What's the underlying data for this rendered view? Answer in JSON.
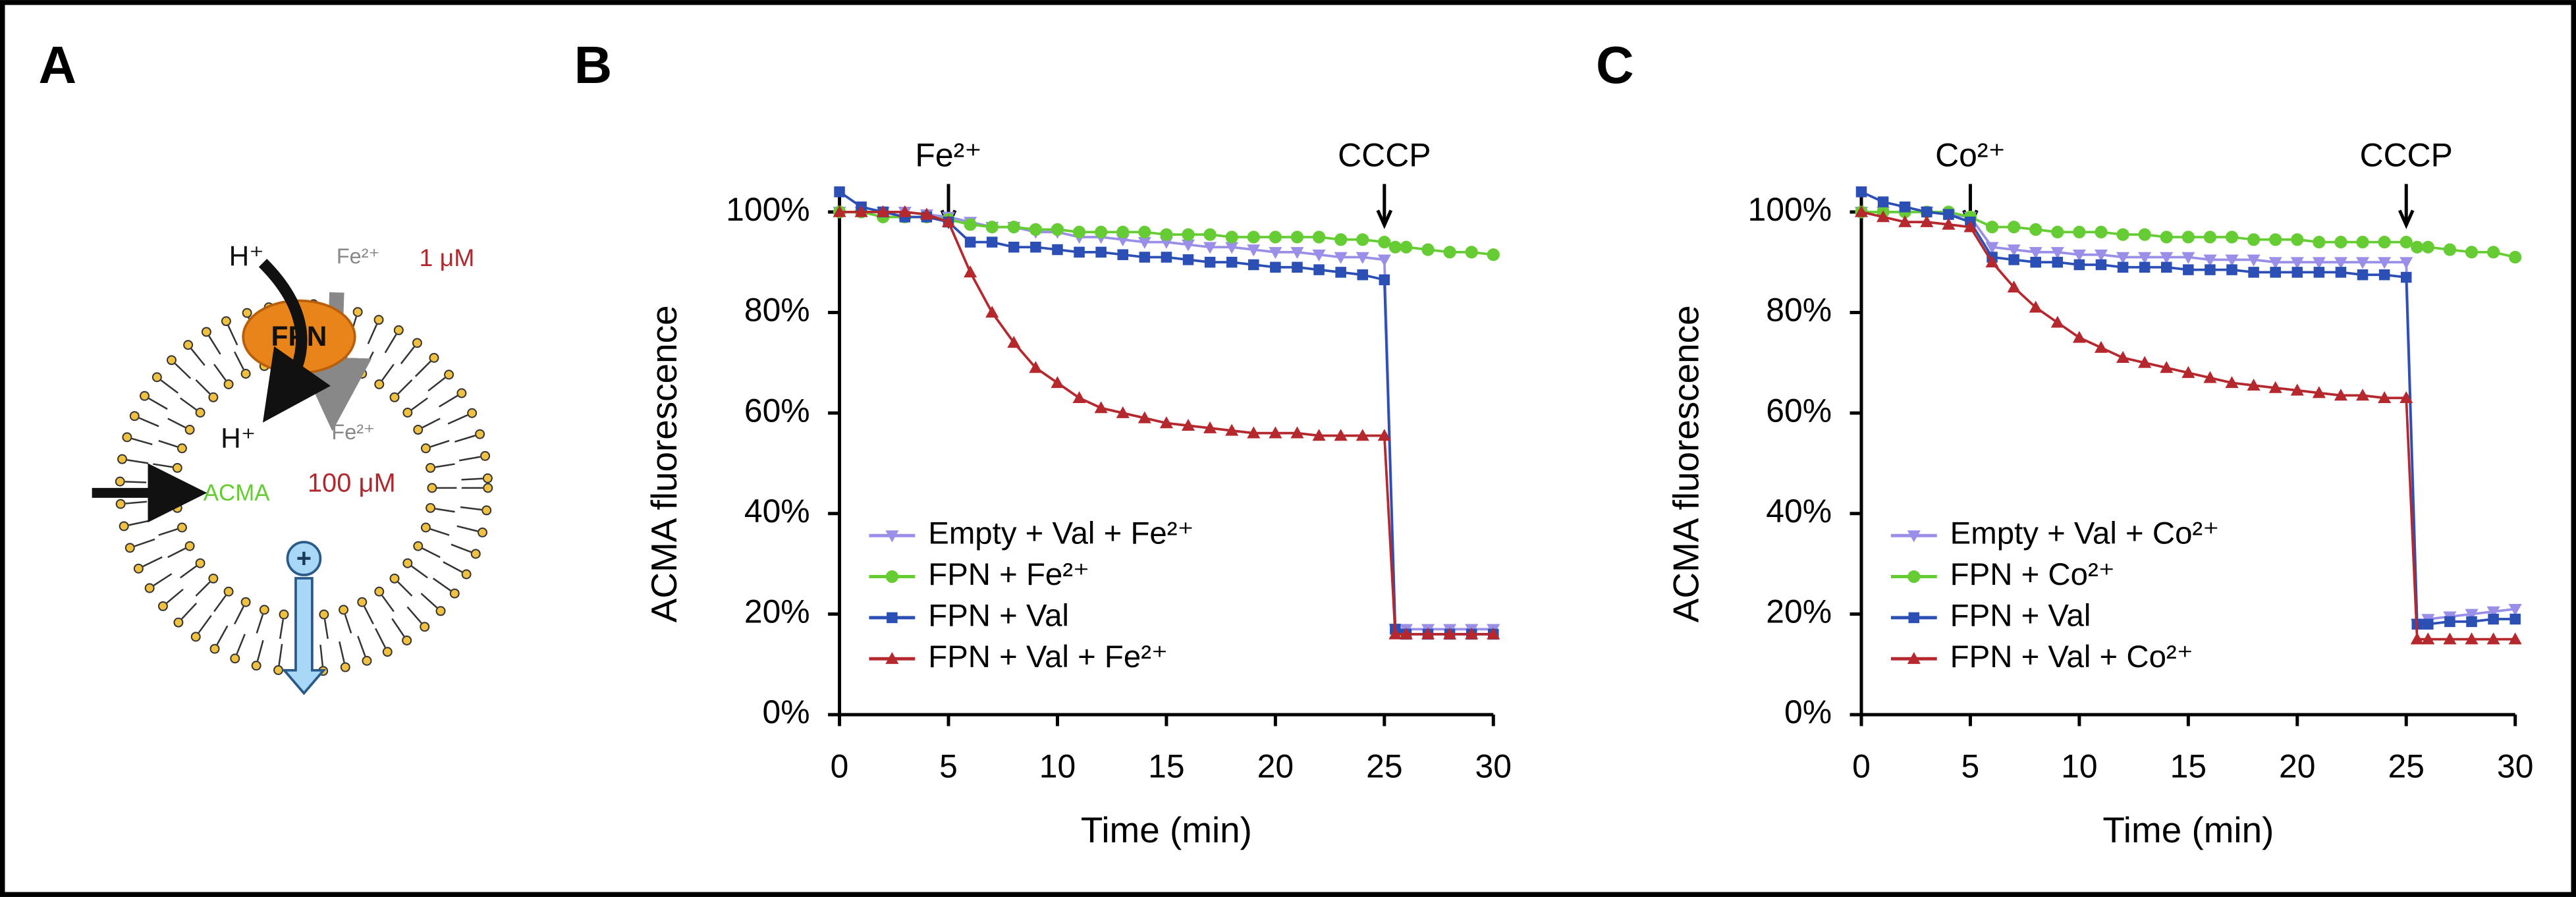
{
  "diagram": {
    "panel": "A",
    "h_out": "H⁺",
    "fe_out": "Fe²⁺",
    "conc_out": "1 μM",
    "protein": "FPN",
    "h_in": "H⁺",
    "fe_in": "Fe²⁺",
    "dye": "ACMA",
    "conc_in": "100 μM",
    "charge": "+"
  },
  "chart_data": [
    {
      "type": "line",
      "panel": "B",
      "xlabel": "Time (min)",
      "ylabel": "ACMA fluorescence",
      "annotations": [
        {
          "text": "Fe²⁺",
          "x": 5
        },
        {
          "text": "CCCP",
          "x": 25
        }
      ],
      "x": [
        0,
        1,
        2,
        3,
        4,
        5,
        6,
        7,
        8,
        9,
        10,
        11,
        12,
        13,
        14,
        15,
        16,
        17,
        18,
        19,
        20,
        21,
        22,
        23,
        24,
        25,
        25.5,
        26,
        27,
        28,
        29,
        30
      ],
      "xlim": [
        0,
        30
      ],
      "xticks": [
        0,
        5,
        10,
        15,
        20,
        25,
        30
      ],
      "ylim": [
        0,
        105
      ],
      "yticks": [
        {
          "value": 0,
          "label": "0%"
        },
        {
          "value": 20,
          "label": "20%"
        },
        {
          "value": 40,
          "label": "40%"
        },
        {
          "value": 60,
          "label": "60%"
        },
        {
          "value": 80,
          "label": "80%"
        },
        {
          "value": 100,
          "label": "100%"
        }
      ],
      "legend": "lower left",
      "series": [
        {
          "name": "Empty + Val + Fe²⁺",
          "color": "#9a8fe8",
          "marker": "triangle-down",
          "values": [
            100,
            100,
            100,
            100,
            99.5,
            99,
            98,
            97,
            97,
            96,
            96,
            95,
            95,
            94.5,
            94,
            94,
            93.5,
            93,
            93,
            92.5,
            92,
            92,
            91.5,
            91,
            91,
            90.5,
            17,
            17,
            17,
            17,
            17,
            17
          ]
        },
        {
          "name": "FPN + Fe²⁺",
          "color": "#66cc33",
          "marker": "circle",
          "values": [
            100,
            100,
            99,
            99,
            99,
            98.5,
            97.5,
            97,
            97,
            96.5,
            96.5,
            96,
            96,
            96,
            96,
            95.5,
            95.5,
            95.5,
            95,
            95,
            95,
            95,
            95,
            94.5,
            94.5,
            94,
            93,
            93,
            92.5,
            92,
            92,
            91.5
          ]
        },
        {
          "name": "FPN + Val",
          "color": "#2b4fb5",
          "marker": "square",
          "values": [
            104,
            101,
            100,
            99,
            99,
            98,
            94,
            94,
            93,
            93,
            92.5,
            92,
            92,
            91.5,
            91,
            91,
            90.5,
            90,
            90,
            89.5,
            89,
            89,
            88.5,
            88,
            87.5,
            86.5,
            17,
            16,
            16,
            16,
            16,
            16
          ]
        },
        {
          "name": "FPN + Val + Fe²⁺",
          "color": "#b5282e",
          "marker": "triangle-up",
          "values": [
            100,
            100,
            100,
            100,
            99.5,
            98,
            88,
            80,
            74,
            69,
            66,
            63,
            61,
            60,
            59,
            58,
            57.5,
            57,
            56.5,
            56,
            56,
            56,
            55.5,
            55.5,
            55.5,
            55.5,
            16,
            16,
            16,
            16,
            16,
            16
          ]
        }
      ]
    },
    {
      "type": "line",
      "panel": "C",
      "xlabel": "Time (min)",
      "ylabel": "ACMA fluorescence",
      "annotations": [
        {
          "text": "Co²⁺",
          "x": 5
        },
        {
          "text": "CCCP",
          "x": 25
        }
      ],
      "x": [
        0,
        1,
        2,
        3,
        4,
        5,
        6,
        7,
        8,
        9,
        10,
        11,
        12,
        13,
        14,
        15,
        16,
        17,
        18,
        19,
        20,
        21,
        22,
        23,
        24,
        25,
        25.5,
        26,
        27,
        28,
        29,
        30
      ],
      "xlim": [
        0,
        30
      ],
      "xticks": [
        0,
        5,
        10,
        15,
        20,
        25,
        30
      ],
      "ylim": [
        0,
        105
      ],
      "yticks": [
        {
          "value": 0,
          "label": "0%"
        },
        {
          "value": 20,
          "label": "20%"
        },
        {
          "value": 40,
          "label": "40%"
        },
        {
          "value": 60,
          "label": "60%"
        },
        {
          "value": 80,
          "label": "80%"
        },
        {
          "value": 100,
          "label": "100%"
        }
      ],
      "legend": "lower left",
      "series": [
        {
          "name": "Empty + Val + Co²⁺",
          "color": "#9a8fe8",
          "marker": "triangle-down",
          "values": [
            100,
            100,
            100,
            100,
            99.5,
            99,
            93,
            92.5,
            92,
            92,
            91.5,
            91.5,
            91,
            91,
            91,
            91,
            90.5,
            90.5,
            90.5,
            90,
            90,
            90,
            90,
            90,
            90,
            90,
            18,
            19,
            19.5,
            20,
            20.5,
            21
          ]
        },
        {
          "name": "FPN + Co²⁺",
          "color": "#66cc33",
          "marker": "circle",
          "values": [
            100,
            100,
            100,
            100,
            100,
            99,
            97,
            97,
            96.5,
            96,
            96,
            96,
            95.5,
            95.5,
            95,
            95,
            95,
            95,
            94.5,
            94.5,
            94.5,
            94,
            94,
            94,
            94,
            94,
            93,
            93,
            92.5,
            92,
            92,
            91
          ]
        },
        {
          "name": "FPN + Val",
          "color": "#2b4fb5",
          "marker": "square",
          "values": [
            104,
            102,
            101,
            100,
            99.5,
            98,
            91,
            90.5,
            90,
            90,
            89.5,
            89.5,
            89,
            89,
            89,
            88.5,
            88.5,
            88.5,
            88,
            88,
            88,
            88,
            88,
            87.5,
            87.5,
            87,
            18,
            18,
            18.5,
            18.5,
            19,
            19
          ]
        },
        {
          "name": "FPN + Val + Co²⁺",
          "color": "#b5282e",
          "marker": "triangle-up",
          "values": [
            100,
            99,
            98,
            98,
            97.5,
            97,
            90,
            85,
            81,
            78,
            75,
            73,
            71,
            70,
            69,
            68,
            67,
            66,
            65.5,
            65,
            64.5,
            64,
            63.5,
            63.5,
            63,
            63,
            15,
            15,
            15,
            15,
            15,
            15
          ]
        }
      ]
    }
  ]
}
